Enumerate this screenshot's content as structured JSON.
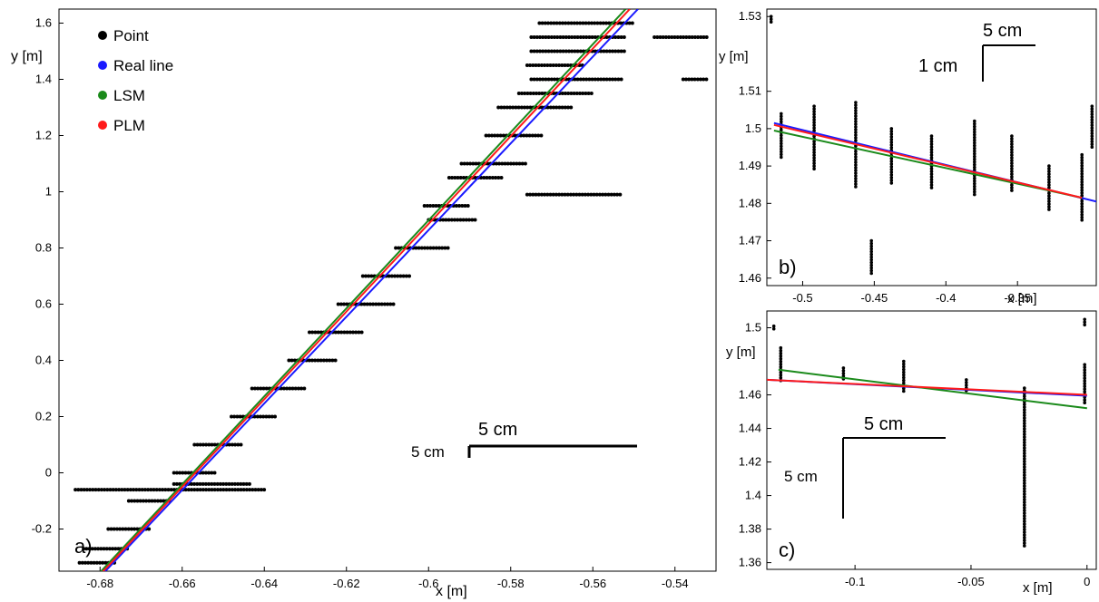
{
  "chart_data": [
    {
      "panel": "a)",
      "type": "scatter",
      "xlabel": "x [m]",
      "ylabel": "y [m]",
      "xlim": [
        -0.69,
        -0.53
      ],
      "ylim": [
        -0.35,
        1.65
      ],
      "xticks": [
        -0.68,
        -0.66,
        -0.64,
        -0.62,
        -0.6,
        -0.58,
        -0.56,
        -0.54
      ],
      "xtick_labels": [
        "-0.68",
        "-0.66",
        "-0.64",
        "-0.62",
        "-0.6",
        "-0.58",
        "-0.56",
        "-0.54"
      ],
      "yticks": [
        -0.2,
        0,
        0.2,
        0.4,
        0.6,
        0.8,
        1,
        1.2,
        1.4,
        1.6
      ],
      "ytick_labels": [
        "-0.2",
        "0",
        "0.2",
        "0.4",
        "0.6",
        "0.8",
        "1",
        "1.2",
        "1.4",
        "1.6"
      ],
      "legend": [
        {
          "label": "Point",
          "color": "#000000"
        },
        {
          "label": "Real line",
          "color": "#1a1aff"
        },
        {
          "label": "LSM",
          "color": "#1a8a1a"
        },
        {
          "label": "PLM",
          "color": "#ff1a1a"
        }
      ],
      "legend_position": "top-left",
      "scale_bar": {
        "horizontal_label": "5 cm",
        "vertical_label": "5 cm"
      },
      "series": [
        {
          "name": "Real line",
          "color": "#1a1aff",
          "x": [
            -0.68,
            -0.549
          ],
          "y": [
            -0.37,
            1.65
          ]
        },
        {
          "name": "LSM",
          "color": "#1a8a1a",
          "x": [
            -0.681,
            -0.552
          ],
          "y": [
            -0.37,
            1.65
          ]
        },
        {
          "name": "PLM",
          "color": "#ff1a1a",
          "x": [
            -0.6805,
            -0.551
          ],
          "y": [
            -0.37,
            1.65
          ]
        }
      ],
      "point_strips": [
        {
          "y": -0.32,
          "x0": -0.685,
          "x1": -0.676
        },
        {
          "y": -0.27,
          "x0": -0.684,
          "x1": -0.673
        },
        {
          "y": -0.2,
          "x0": -0.678,
          "x1": -0.668
        },
        {
          "y": -0.1,
          "x0": -0.673,
          "x1": -0.663
        },
        {
          "y": -0.06,
          "x0": -0.686,
          "x1": -0.64
        },
        {
          "y": -0.04,
          "x0": -0.662,
          "x1": -0.643
        },
        {
          "y": 0.0,
          "x0": -0.662,
          "x1": -0.652
        },
        {
          "y": 0.1,
          "x0": -0.657,
          "x1": -0.645
        },
        {
          "y": 0.2,
          "x0": -0.648,
          "x1": -0.637
        },
        {
          "y": 0.3,
          "x0": -0.643,
          "x1": -0.63
        },
        {
          "y": 0.4,
          "x0": -0.634,
          "x1": -0.622
        },
        {
          "y": 0.5,
          "x0": -0.629,
          "x1": -0.616
        },
        {
          "y": 0.6,
          "x0": -0.622,
          "x1": -0.608
        },
        {
          "y": 0.7,
          "x0": -0.616,
          "x1": -0.604
        },
        {
          "y": 0.8,
          "x0": -0.608,
          "x1": -0.595
        },
        {
          "y": 0.9,
          "x0": -0.6,
          "x1": -0.588
        },
        {
          "y": 0.95,
          "x0": -0.601,
          "x1": -0.59
        },
        {
          "y": 0.99,
          "x0": -0.576,
          "x1": -0.553
        },
        {
          "y": 1.05,
          "x0": -0.595,
          "x1": -0.582
        },
        {
          "y": 1.1,
          "x0": -0.592,
          "x1": -0.576
        },
        {
          "y": 1.2,
          "x0": -0.586,
          "x1": -0.572
        },
        {
          "y": 1.3,
          "x0": -0.583,
          "x1": -0.565
        },
        {
          "y": 1.35,
          "x0": -0.578,
          "x1": -0.56
        },
        {
          "y": 1.4,
          "x0": -0.575,
          "x1": -0.553
        },
        {
          "y": 1.45,
          "x0": -0.576,
          "x1": -0.562
        },
        {
          "y": 1.5,
          "x0": -0.575,
          "x1": -0.552
        },
        {
          "y": 1.55,
          "x0": -0.575,
          "x1": -0.552
        },
        {
          "y": 1.6,
          "x0": -0.573,
          "x1": -0.55
        },
        {
          "y": 1.55,
          "x0": -0.545,
          "x1": -0.532
        },
        {
          "y": 1.4,
          "x0": -0.538,
          "x1": -0.532
        }
      ],
      "annotations": [
        "a)"
      ]
    },
    {
      "panel": "b)",
      "type": "scatter",
      "xlabel": "x [m]",
      "ylabel": "y [m]",
      "xlim": [
        -0.525,
        -0.295
      ],
      "ylim": [
        1.458,
        1.532
      ],
      "xticks": [
        -0.5,
        -0.45,
        -0.4,
        -0.35
      ],
      "xtick_labels": [
        "-0.5",
        "-0.45",
        "-0.4",
        "-0.35"
      ],
      "yticks": [
        1.46,
        1.47,
        1.48,
        1.49,
        1.5,
        1.51,
        1.53
      ],
      "ytick_labels": [
        "1.46",
        "1.47",
        "1.48",
        "1.49",
        "1.5",
        "1.51",
        "1.53"
      ],
      "scale_bar": {
        "horizontal_label": "5 cm",
        "vertical_label": "1 cm"
      },
      "series": [
        {
          "name": "Real line",
          "color": "#1a1aff",
          "x": [
            -0.52,
            -0.295
          ],
          "y": [
            1.5015,
            1.4805
          ]
        },
        {
          "name": "LSM",
          "color": "#1a8a1a",
          "x": [
            -0.52,
            -0.305
          ],
          "y": [
            1.4995,
            1.4815
          ]
        },
        {
          "name": "PLM",
          "color": "#ff1a1a",
          "x": [
            -0.52,
            -0.305
          ],
          "y": [
            1.501,
            1.4815
          ]
        }
      ],
      "point_columns": [
        {
          "x": -0.522,
          "y0": 1.528,
          "y1": 1.53
        },
        {
          "x": -0.515,
          "y0": 1.492,
          "y1": 1.504
        },
        {
          "x": -0.492,
          "y0": 1.489,
          "y1": 1.506
        },
        {
          "x": -0.463,
          "y0": 1.484,
          "y1": 1.507
        },
        {
          "x": -0.452,
          "y0": 1.461,
          "y1": 1.47
        },
        {
          "x": -0.438,
          "y0": 1.485,
          "y1": 1.5
        },
        {
          "x": -0.41,
          "y0": 1.484,
          "y1": 1.498
        },
        {
          "x": -0.38,
          "y0": 1.482,
          "y1": 1.502
        },
        {
          "x": -0.354,
          "y0": 1.483,
          "y1": 1.498
        },
        {
          "x": -0.328,
          "y0": 1.478,
          "y1": 1.49
        },
        {
          "x": -0.305,
          "y0": 1.475,
          "y1": 1.493
        },
        {
          "x": -0.298,
          "y0": 1.495,
          "y1": 1.506
        }
      ],
      "annotations": [
        "b)"
      ]
    },
    {
      "panel": "c)",
      "type": "scatter",
      "xlabel": "x [m]",
      "ylabel": "y [m]",
      "xlim": [
        -0.138,
        0.004
      ],
      "ylim": [
        1.356,
        1.51
      ],
      "xticks": [
        -0.1,
        -0.05,
        0
      ],
      "xtick_labels": [
        "-0.1",
        "-0.05",
        "0"
      ],
      "yticks": [
        1.36,
        1.38,
        1.4,
        1.42,
        1.44,
        1.46,
        1.5
      ],
      "ytick_labels": [
        "1.36",
        "1.38",
        "1.4",
        "1.42",
        "1.44",
        "1.46",
        "1.5"
      ],
      "scale_bar": {
        "horizontal_label": "5 cm",
        "vertical_label": "5 cm"
      },
      "series": [
        {
          "name": "Real line",
          "color": "#1a1aff",
          "x": [
            -0.138,
            0.0
          ],
          "y": [
            1.469,
            1.4595
          ]
        },
        {
          "name": "LSM",
          "color": "#1a8a1a",
          "x": [
            -0.133,
            0.0
          ],
          "y": [
            1.475,
            1.452
          ]
        },
        {
          "name": "PLM",
          "color": "#ff1a1a",
          "x": [
            -0.138,
            0.0
          ],
          "y": [
            1.469,
            1.46
          ]
        }
      ],
      "point_columns": [
        {
          "x": -0.135,
          "y0": 1.499,
          "y1": 1.501
        },
        {
          "x": -0.132,
          "y0": 1.468,
          "y1": 1.488
        },
        {
          "x": -0.105,
          "y0": 1.468,
          "y1": 1.476
        },
        {
          "x": -0.079,
          "y0": 1.462,
          "y1": 1.48
        },
        {
          "x": -0.052,
          "y0": 1.462,
          "y1": 1.469
        },
        {
          "x": -0.027,
          "y0": 1.37,
          "y1": 1.464
        },
        {
          "x": -0.001,
          "y0": 1.455,
          "y1": 1.478
        },
        {
          "x": -0.001,
          "y0": 1.501,
          "y1": 1.505
        }
      ],
      "annotations": [
        "c)"
      ]
    }
  ]
}
